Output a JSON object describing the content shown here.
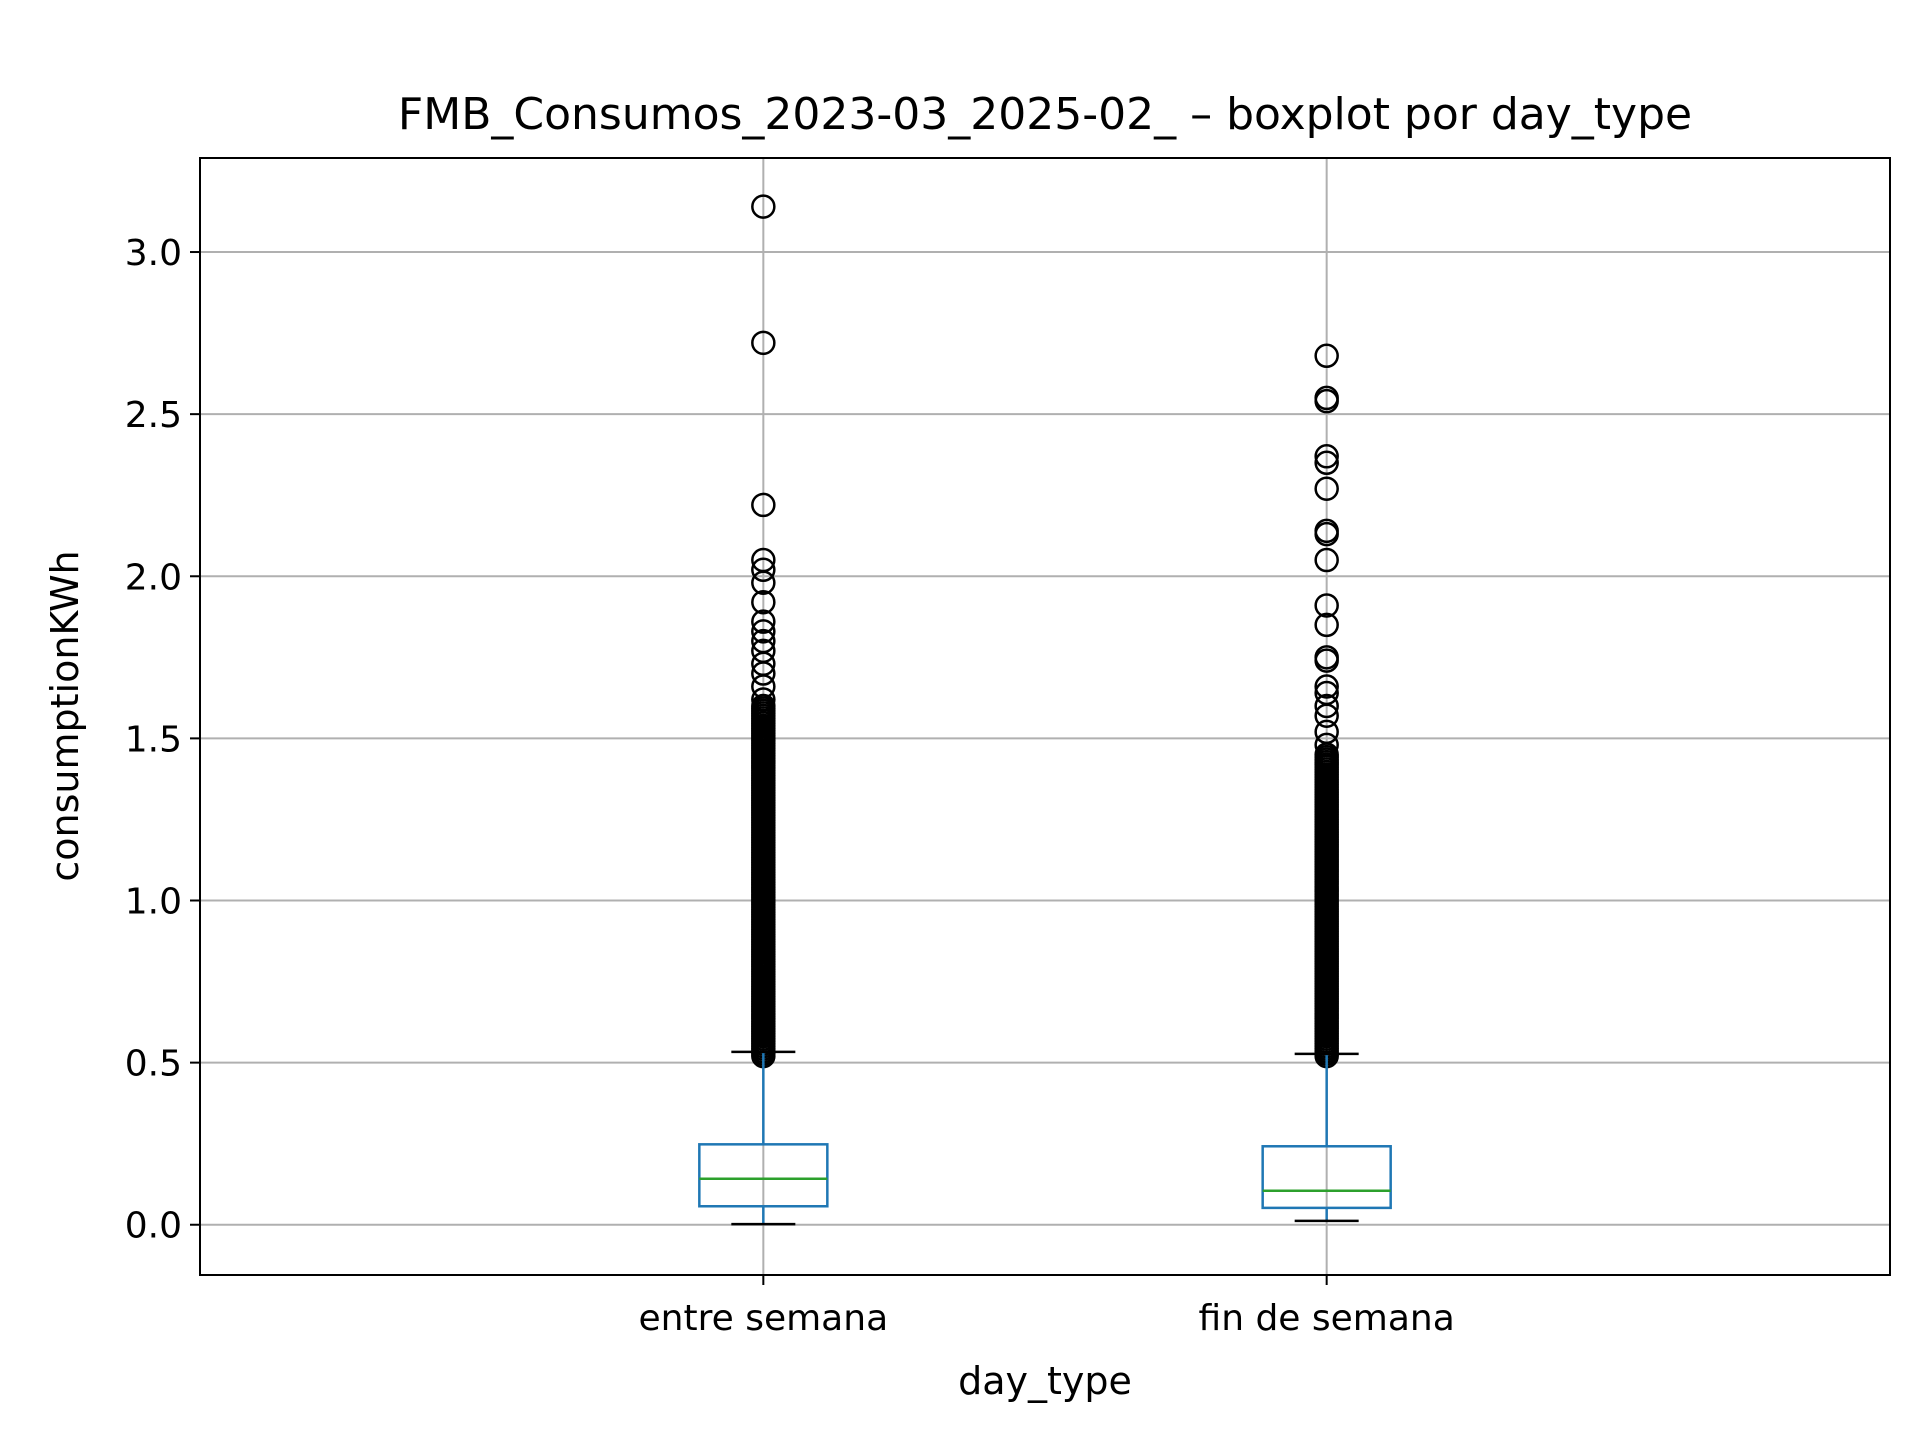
{
  "chart_data": {
    "type": "boxplot",
    "title": "FMB_Consumos_2023-03_2025-02_ – boxplot por day_type",
    "xlabel": "day_type",
    "ylabel": "consumptionKWh",
    "ylim": [
      -0.155,
      3.29
    ],
    "yticks": [
      0.0,
      0.5,
      1.0,
      1.5,
      2.0,
      2.5,
      3.0
    ],
    "ytick_labels": [
      "0.0",
      "0.5",
      "1.0",
      "1.5",
      "2.0",
      "2.5",
      "3.0"
    ],
    "grid": true,
    "categories": [
      "entre semana",
      "fin de semana"
    ],
    "boxes": [
      {
        "category": "entre semana",
        "whisker_low": 0.002,
        "q1": 0.057,
        "median": 0.142,
        "q3": 0.248,
        "whisker_high": 0.533,
        "outliers_dense_range": [
          0.52,
          1.6
        ],
        "outliers": [
          1.62,
          1.66,
          1.7,
          1.73,
          1.77,
          1.8,
          1.83,
          1.86,
          1.92,
          1.98,
          2.02,
          2.05,
          2.22,
          2.72,
          3.14
        ]
      },
      {
        "category": "fin de semana",
        "whisker_low": 0.012,
        "q1": 0.052,
        "median": 0.105,
        "q3": 0.242,
        "whisker_high": 0.527,
        "outliers_dense_range": [
          0.52,
          1.45
        ],
        "outliers": [
          1.48,
          1.52,
          1.57,
          1.6,
          1.64,
          1.66,
          1.74,
          1.75,
          1.85,
          1.91,
          2.05,
          2.13,
          2.14,
          2.27,
          2.35,
          2.37,
          2.54,
          2.55,
          2.68
        ]
      }
    ],
    "colors": {
      "box": "#1f77b4",
      "median": "#2ca02c",
      "whisker_cap": "#000000",
      "grid": "#b0b0b0",
      "outlier_edge": "#000000"
    }
  }
}
